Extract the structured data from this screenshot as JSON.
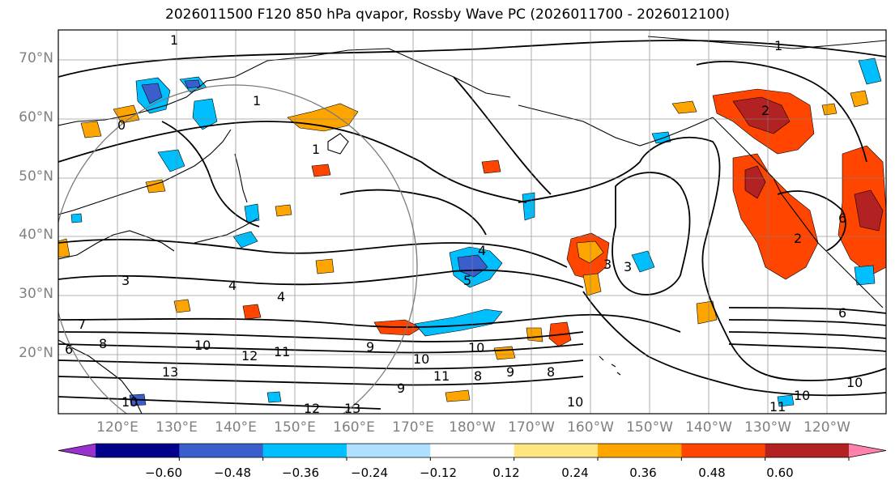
{
  "title": "2026011500 F120 850 hPa qvapor, Rossby Wave PC (2026011700 - 2026012100)",
  "map": {
    "projection": "plate carree, dateline-centered",
    "lat_range": [
      10,
      75
    ],
    "lon_range": [
      110,
      250
    ],
    "lat_labels": [
      "70°N",
      "60°N",
      "50°N",
      "40°N",
      "30°N",
      "20°N"
    ],
    "lon_labels": [
      "120°E",
      "130°E",
      "140°E",
      "150°E",
      "160°E",
      "170°E",
      "180°W",
      "170°W",
      "160°W",
      "150°W",
      "140°W",
      "130°W",
      "120°W"
    ],
    "contour_variable": "850 hPa qvapor (g/kg)",
    "contour_labels": [
      "1",
      "1",
      "0",
      "1",
      "1",
      "2",
      "2",
      "3",
      "4",
      "4",
      "3",
      "5",
      "6",
      "7",
      "6",
      "8",
      "10",
      "12",
      "11",
      "10",
      "10",
      "11",
      "13",
      "12",
      "13",
      "10",
      "9",
      "8",
      "9",
      "9",
      "8",
      "10",
      "11",
      "10",
      "10",
      "6",
      "4",
      "3"
    ],
    "shading_variable": "Rossby Wave PC"
  },
  "colorbar": {
    "ticks": [
      "−0.60",
      "−0.48",
      "−0.36",
      "−0.24",
      "−0.12",
      "0.12",
      "0.24",
      "0.36",
      "0.48",
      "0.60"
    ],
    "colors": [
      "#9932cc",
      "#00008b",
      "#3a5fcd",
      "#00bfff",
      "#b0e0ff",
      "#ffffff",
      "#ffe680",
      "#ffa500",
      "#ff4500",
      "#b22222",
      "#ff82ab"
    ]
  }
}
